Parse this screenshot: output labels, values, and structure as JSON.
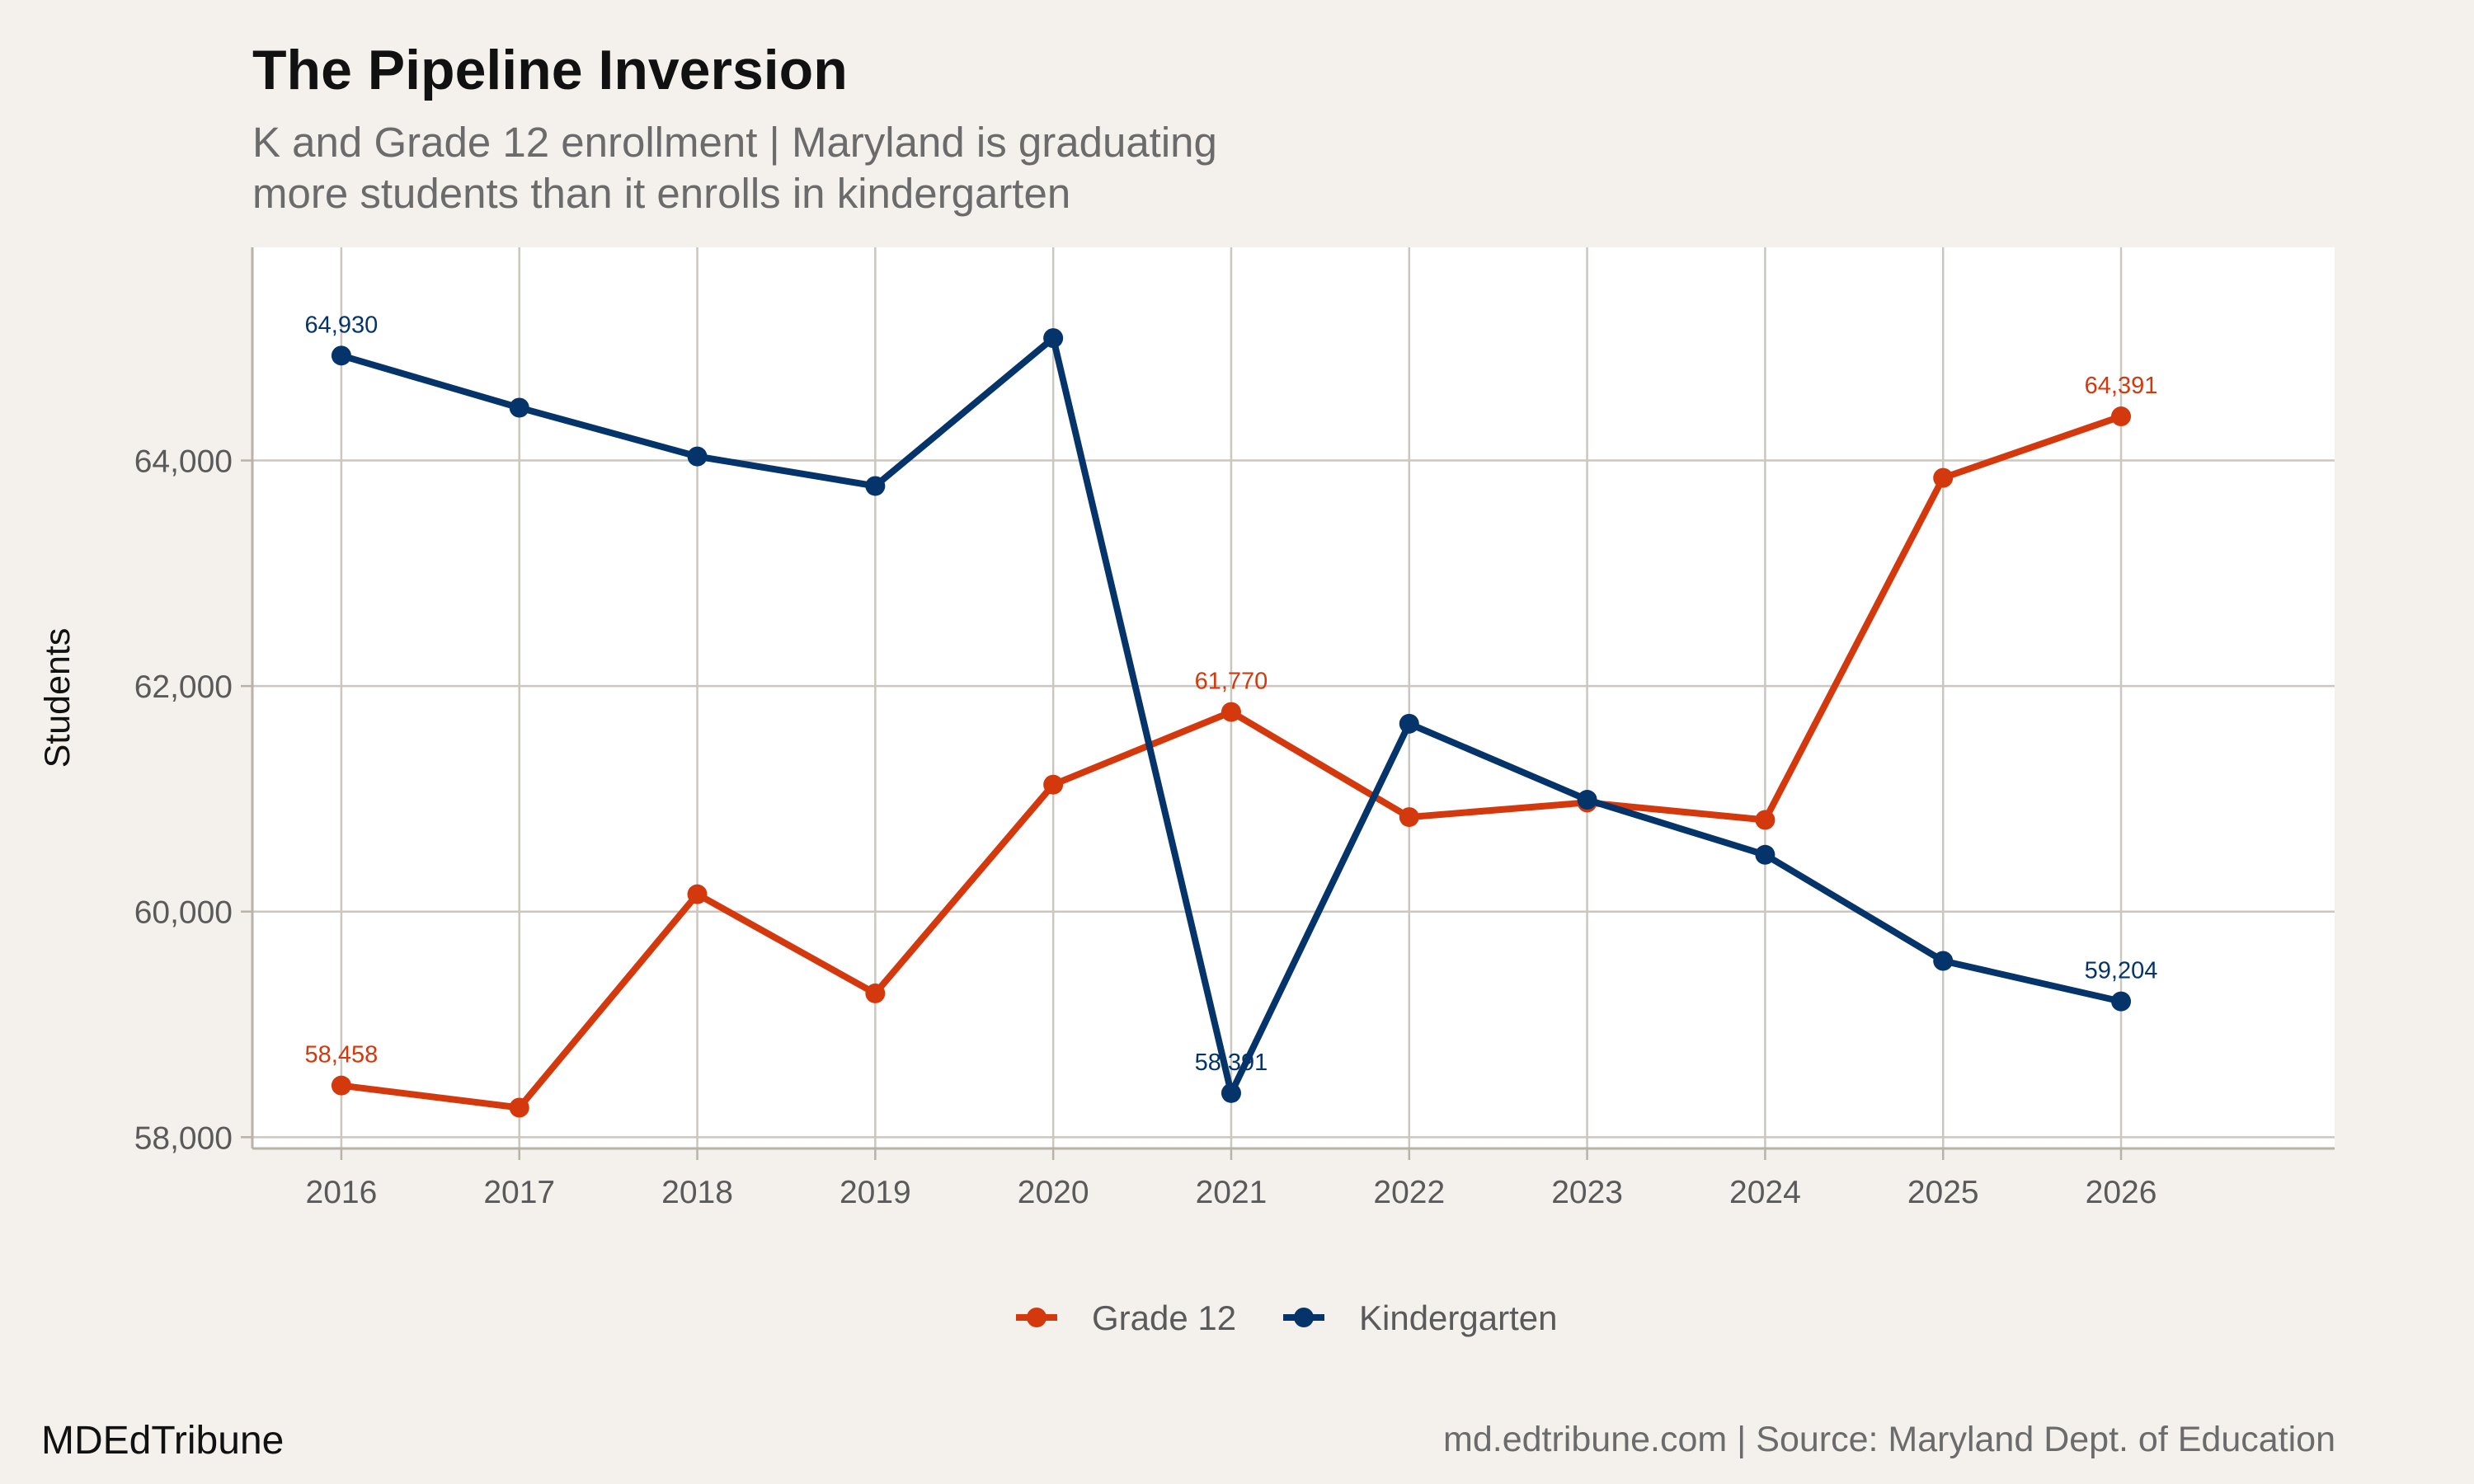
{
  "header": {
    "title": "The Pipeline Inversion",
    "subtitle_lines": [
      "K and Grade 12 enrollment | Maryland is graduating",
      "more students than it enrolls in kindergarten"
    ]
  },
  "footer": {
    "brand": "MDEdTribune",
    "source": "md.edtribune.com | Source: Maryland Dept. of Education"
  },
  "chart_data": {
    "type": "line",
    "title": "The Pipeline Inversion",
    "xlabel": "",
    "ylabel": "Students",
    "x": [
      2016,
      2017,
      2018,
      2019,
      2020,
      2021,
      2022,
      2023,
      2024,
      2025,
      2026
    ],
    "x_tick_labels": [
      "2016",
      "2017",
      "2018",
      "2019",
      "2020",
      "2021",
      "2022",
      "2023",
      "2024",
      "2025",
      "2026"
    ],
    "xlim": [
      2015.5,
      2027.2
    ],
    "ylim": [
      57900,
      65890
    ],
    "y_ticks": [
      58000,
      60000,
      62000,
      64000
    ],
    "y_tick_labels": [
      "58,000",
      "60,000",
      "62,000",
      "64,000"
    ],
    "grid": true,
    "legend_position": "bottom",
    "series": [
      {
        "name": "Grade 12",
        "color": "#d4380d",
        "values": [
          58458,
          58262,
          60154,
          59275,
          61126,
          61770,
          60838,
          60967,
          60813,
          63846,
          64391
        ],
        "labels": [
          {
            "x": 2016,
            "text": "58,458"
          },
          {
            "x": 2021,
            "text": "61,770"
          },
          {
            "x": 2026,
            "text": "64,391"
          }
        ]
      },
      {
        "name": "Kindergarten",
        "color": "#04346a",
        "values": [
          64930,
          64468,
          64036,
          63774,
          65085,
          58391,
          61666,
          60992,
          60504,
          59563,
          59204
        ],
        "labels": [
          {
            "x": 2016,
            "text": "64,930"
          },
          {
            "x": 2021,
            "text": "58,391"
          },
          {
            "x": 2026,
            "text": "59,204"
          }
        ]
      }
    ]
  }
}
